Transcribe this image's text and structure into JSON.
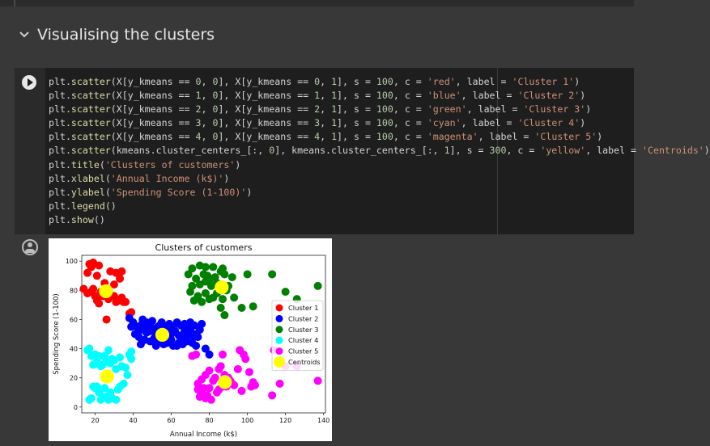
{
  "section": {
    "title": "Visualising the clusters"
  },
  "code_lines": [
    "plt.scatter(X[y_kmeans == 0, 0], X[y_kmeans == 0, 1], s = 100, c = 'red', label = 'Cluster 1')",
    "plt.scatter(X[y_kmeans == 1, 0], X[y_kmeans == 1, 1], s = 100, c = 'blue', label = 'Cluster 2')",
    "plt.scatter(X[y_kmeans == 2, 0], X[y_kmeans == 2, 1], s = 100, c = 'green', label = 'Cluster 3')",
    "plt.scatter(X[y_kmeans == 3, 0], X[y_kmeans == 3, 1], s = 100, c = 'cyan', label = 'Cluster 4')",
    "plt.scatter(X[y_kmeans == 4, 0], X[y_kmeans == 4, 1], s = 100, c = 'magenta', label = 'Cluster 5')",
    "plt.scatter(kmeans.cluster_centers_[:, 0], kmeans.cluster_centers_[:, 1], s = 300, c = 'yellow', label = 'Centroids')",
    "plt.title('Clusters of customers')",
    "plt.xlabel('Annual Income (k$)')",
    "plt.ylabel('Spending Score (1-100)')",
    "plt.legend()",
    "plt.show()"
  ],
  "colors": {
    "code_default": "#d4d4d4",
    "code_string": "#ce9178",
    "code_number": "#b5cea8",
    "code_func": "#dcdcaa"
  },
  "chart_data": {
    "type": "scatter",
    "title": "Clusters of customers",
    "xlabel": "Annual Income (k$)",
    "ylabel": "Spending Score (1-100)",
    "xlim": [
      13,
      141
    ],
    "ylim": [
      -4,
      104
    ],
    "xticks": [
      20,
      40,
      60,
      80,
      100,
      120,
      140
    ],
    "yticks": [
      0,
      20,
      40,
      60,
      80,
      100
    ],
    "legend_position": "center-right",
    "series": [
      {
        "name": "Cluster 1",
        "color": "#ff0000",
        "size": "small",
        "points": [
          [
            17,
            98
          ],
          [
            19,
            99
          ],
          [
            18,
            96
          ],
          [
            16,
            92
          ],
          [
            22,
            97
          ],
          [
            28,
            93
          ],
          [
            31,
            92
          ],
          [
            34,
            93
          ],
          [
            33,
            88
          ],
          [
            21,
            90
          ],
          [
            14,
            81
          ],
          [
            16,
            78
          ],
          [
            18,
            79
          ],
          [
            20,
            76
          ],
          [
            21,
            73
          ],
          [
            23,
            79
          ],
          [
            24,
            76
          ],
          [
            25,
            80
          ],
          [
            27,
            74
          ],
          [
            28,
            77
          ],
          [
            30,
            76
          ],
          [
            31,
            72
          ],
          [
            33,
            73
          ],
          [
            34,
            75
          ],
          [
            35,
            72
          ],
          [
            36,
            72
          ],
          [
            26,
            60
          ],
          [
            38,
            64
          ],
          [
            39,
            65
          ],
          [
            22,
            71
          ],
          [
            19,
            81
          ],
          [
            25,
            85
          ],
          [
            30,
            84
          ]
        ]
      },
      {
        "name": "Cluster 2",
        "color": "#0000ff",
        "size": "small",
        "points": [
          [
            38,
            61
          ],
          [
            40,
            58
          ],
          [
            42,
            55
          ],
          [
            43,
            52
          ],
          [
            44,
            56
          ],
          [
            45,
            60
          ],
          [
            46,
            55
          ],
          [
            47,
            51
          ],
          [
            48,
            56
          ],
          [
            49,
            52
          ],
          [
            50,
            59
          ],
          [
            51,
            47
          ],
          [
            52,
            50
          ],
          [
            53,
            55
          ],
          [
            54,
            56
          ],
          [
            55,
            51
          ],
          [
            56,
            43
          ],
          [
            57,
            48
          ],
          [
            58,
            53
          ],
          [
            59,
            57
          ],
          [
            60,
            46
          ],
          [
            61,
            55
          ],
          [
            62,
            52
          ],
          [
            63,
            42
          ],
          [
            64,
            49
          ],
          [
            65,
            56
          ],
          [
            66,
            47
          ],
          [
            67,
            52
          ],
          [
            68,
            45
          ],
          [
            69,
            55
          ],
          [
            70,
            53
          ],
          [
            71,
            44
          ],
          [
            72,
            56
          ],
          [
            73,
            50
          ],
          [
            74,
            48
          ],
          [
            75,
            53
          ],
          [
            43,
            48
          ],
          [
            46,
            46
          ],
          [
            49,
            45
          ],
          [
            52,
            42
          ],
          [
            55,
            58
          ],
          [
            58,
            44
          ],
          [
            61,
            42
          ],
          [
            64,
            44
          ],
          [
            67,
            57
          ],
          [
            70,
            58
          ],
          [
            73,
            42
          ],
          [
            76,
            57
          ],
          [
            78,
            40
          ],
          [
            80,
            36
          ],
          [
            39,
            55
          ],
          [
            41,
            50
          ],
          [
            44,
            43
          ],
          [
            47,
            58
          ],
          [
            50,
            54
          ],
          [
            53,
            45
          ],
          [
            57,
            55
          ],
          [
            60,
            50
          ],
          [
            63,
            58
          ],
          [
            66,
            43
          ],
          [
            69,
            49
          ],
          [
            72,
            48
          ]
        ]
      },
      {
        "name": "Cluster 3",
        "color": "#008000",
        "size": "small",
        "points": [
          [
            69,
            91
          ],
          [
            71,
            95
          ],
          [
            73,
            88
          ],
          [
            75,
            97
          ],
          [
            77,
            91
          ],
          [
            78,
            96
          ],
          [
            79,
            90
          ],
          [
            80,
            87
          ],
          [
            81,
            83
          ],
          [
            82,
            96
          ],
          [
            83,
            89
          ],
          [
            84,
            85
          ],
          [
            86,
            93
          ],
          [
            87,
            95
          ],
          [
            88,
            91
          ],
          [
            89,
            80
          ],
          [
            90,
            83
          ],
          [
            92,
            89
          ],
          [
            70,
            79
          ],
          [
            72,
            73
          ],
          [
            74,
            76
          ],
          [
            76,
            72
          ],
          [
            78,
            78
          ],
          [
            80,
            74
          ],
          [
            82,
            75
          ],
          [
            86,
            68
          ],
          [
            87,
            74
          ],
          [
            88,
            63
          ],
          [
            93,
            75
          ],
          [
            97,
            68
          ],
          [
            100,
            91
          ],
          [
            103,
            69
          ],
          [
            113,
            91
          ],
          [
            120,
            79
          ],
          [
            126,
            74
          ],
          [
            137,
            83
          ],
          [
            78,
            86
          ],
          [
            84,
            78
          ],
          [
            71,
            83
          ],
          [
            75,
            84
          ]
        ]
      },
      {
        "name": "Cluster 4",
        "color": "#00ffff",
        "size": "small",
        "points": [
          [
            16,
            39
          ],
          [
            17,
            40
          ],
          [
            18,
            35
          ],
          [
            19,
            29
          ],
          [
            20,
            36
          ],
          [
            21,
            31
          ],
          [
            22,
            35
          ],
          [
            23,
            28
          ],
          [
            24,
            29
          ],
          [
            25,
            35
          ],
          [
            26,
            31
          ],
          [
            27,
            39
          ],
          [
            28,
            30
          ],
          [
            29,
            33
          ],
          [
            30,
            32
          ],
          [
            31,
            26
          ],
          [
            33,
            34
          ],
          [
            34,
            28
          ],
          [
            36,
            27
          ],
          [
            38,
            36
          ],
          [
            39,
            33
          ],
          [
            20,
            13
          ],
          [
            21,
            14
          ],
          [
            22,
            10
          ],
          [
            23,
            5
          ],
          [
            24,
            7
          ],
          [
            25,
            13
          ],
          [
            26,
            7
          ],
          [
            27,
            5
          ],
          [
            28,
            10
          ],
          [
            29,
            6
          ],
          [
            31,
            5
          ],
          [
            32,
            12
          ],
          [
            33,
            14
          ],
          [
            35,
            16
          ],
          [
            37,
            22
          ],
          [
            18,
            6
          ],
          [
            19,
            14
          ],
          [
            17,
            5
          ],
          [
            39,
            38
          ]
        ]
      },
      {
        "name": "Cluster 5",
        "color": "#ff00ff",
        "size": "small",
        "points": [
          [
            71,
            35
          ],
          [
            73,
            36
          ],
          [
            74,
            12
          ],
          [
            75,
            7
          ],
          [
            76,
            10
          ],
          [
            77,
            13
          ],
          [
            78,
            6
          ],
          [
            79,
            8
          ],
          [
            80,
            13
          ],
          [
            81,
            5
          ],
          [
            82,
            18
          ],
          [
            83,
            20
          ],
          [
            84,
            10
          ],
          [
            85,
            26
          ],
          [
            86,
            28
          ],
          [
            87,
            14
          ],
          [
            88,
            22
          ],
          [
            89,
            14
          ],
          [
            90,
            20
          ],
          [
            91,
            18
          ],
          [
            92,
            16
          ],
          [
            93,
            15
          ],
          [
            95,
            26
          ],
          [
            96,
            39
          ],
          [
            97,
            11
          ],
          [
            98,
            36
          ],
          [
            99,
            33
          ],
          [
            101,
            24
          ],
          [
            102,
            14
          ],
          [
            103,
            17
          ],
          [
            104,
            15
          ],
          [
            113,
            8
          ],
          [
            114,
            39
          ],
          [
            117,
            16
          ],
          [
            120,
            28
          ],
          [
            126,
            28
          ],
          [
            137,
            18
          ],
          [
            78,
            22
          ],
          [
            85,
            12
          ],
          [
            87,
            36
          ],
          [
            92,
            16
          ],
          [
            74,
            16
          ],
          [
            76,
            19
          ],
          [
            80,
            25
          ]
        ]
      },
      {
        "name": "Centroids",
        "color": "#ffff00",
        "size": "large",
        "points": [
          [
            25.7,
            79.4
          ],
          [
            55.3,
            49.5
          ],
          [
            86.5,
            82.1
          ],
          [
            26.3,
            20.9
          ],
          [
            88.2,
            17.1
          ]
        ]
      }
    ]
  }
}
